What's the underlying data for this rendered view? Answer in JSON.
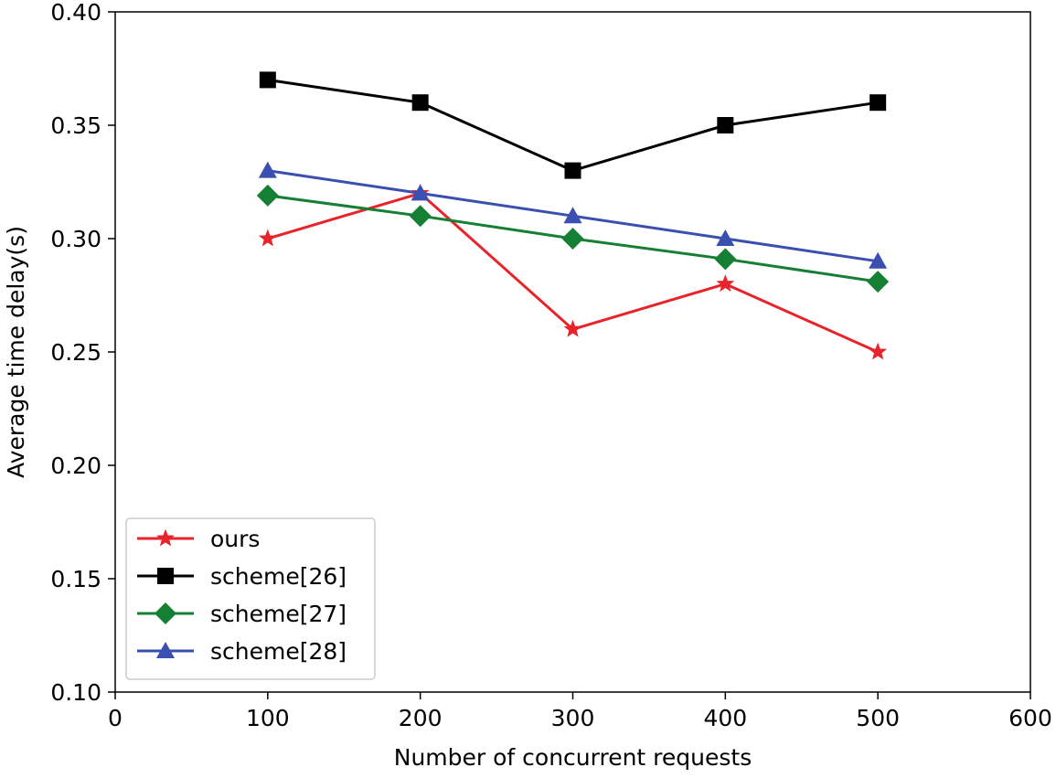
{
  "chart_data": {
    "type": "line",
    "title": "",
    "xlabel": "Number of concurrent requests",
    "ylabel": "Average time delay(s)",
    "xlim": [
      0,
      600
    ],
    "ylim": [
      0.1,
      0.4
    ],
    "xticks": [
      "0",
      "100",
      "200",
      "300",
      "400",
      "500",
      "600"
    ],
    "yticks": [
      "0.10",
      "0.15",
      "0.20",
      "0.25",
      "0.30",
      "0.35",
      "0.40"
    ],
    "xtick_values": [
      0,
      100,
      200,
      300,
      400,
      500,
      600
    ],
    "ytick_values": [
      0.1,
      0.15,
      0.2,
      0.25,
      0.3,
      0.35,
      0.4
    ],
    "grid": false,
    "legend_position": "bottom-left",
    "x": [
      100,
      200,
      300,
      400,
      500
    ],
    "series": [
      {
        "name": "ours",
        "color": "#e8232a",
        "marker": "star",
        "values": [
          0.3,
          0.32,
          0.26,
          0.28,
          0.25
        ]
      },
      {
        "name": "scheme[26]",
        "color": "#000000",
        "marker": "square",
        "values": [
          0.37,
          0.36,
          0.33,
          0.35,
          0.36
        ]
      },
      {
        "name": "scheme[27]",
        "color": "#158033",
        "marker": "diamond",
        "values": [
          0.319,
          0.31,
          0.3,
          0.291,
          0.281
        ]
      },
      {
        "name": "scheme[28]",
        "color": "#3a4fb0",
        "marker": "triangle",
        "values": [
          0.33,
          0.32,
          0.31,
          0.3,
          0.29
        ]
      }
    ]
  }
}
